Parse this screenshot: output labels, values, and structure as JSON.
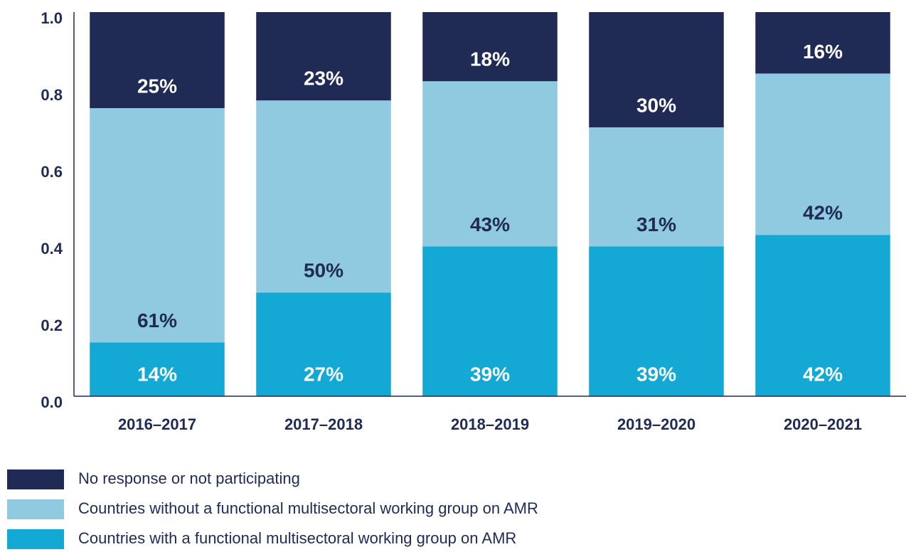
{
  "chart_data": {
    "type": "stacked_bar",
    "categories": [
      "2016–2017",
      "2017–2018",
      "2018–2019",
      "2019–2020",
      "2020–2021"
    ],
    "series": [
      {
        "name": "No response or not participating",
        "color": "#1f2a55",
        "label_color": "#ffffff",
        "values": [
          0.25,
          0.23,
          0.18,
          0.3,
          0.16
        ],
        "value_labels": [
          "25%",
          "23%",
          "18%",
          "30%",
          "16%"
        ]
      },
      {
        "name": "Countries without a functional multisectoral working group on AMR",
        "color": "#8fcae0",
        "label_color": "#1f2a55",
        "values": [
          0.61,
          0.5,
          0.43,
          0.31,
          0.42
        ],
        "value_labels": [
          "61%",
          "50%",
          "43%",
          "31%",
          "42%"
        ]
      },
      {
        "name": "Countries with a functional multisectoral working group on AMR",
        "color": "#14a8d4",
        "label_color": "#ffffff",
        "values": [
          0.14,
          0.27,
          0.39,
          0.39,
          0.42
        ],
        "value_labels": [
          "14%",
          "27%",
          "39%",
          "39%",
          "42%"
        ]
      }
    ],
    "ylim": [
      0,
      1
    ],
    "yticks": [
      {
        "value": 0,
        "label": "0.0"
      },
      0.2,
      0.4,
      0.6,
      0.8,
      {
        "value": 1,
        "label": "1.0"
      }
    ]
  }
}
